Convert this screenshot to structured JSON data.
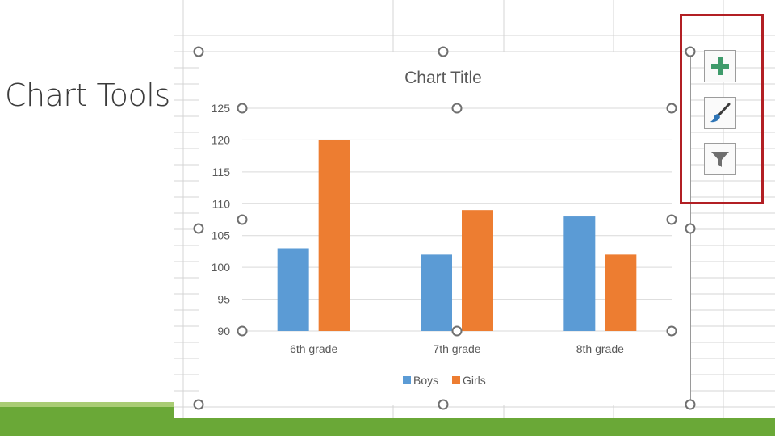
{
  "slide": {
    "title": "Chart Tools"
  },
  "chart_tools": {
    "elements_icon": "plus-icon",
    "styles_icon": "paintbrush-icon",
    "filters_icon": "funnel-icon"
  },
  "colors": {
    "boys": "#5b9bd5",
    "girls": "#ed7d31",
    "highlight": "#b21f24",
    "bottom_bar": "#6aa837",
    "plus": "#3f9b6b"
  },
  "chart_data": {
    "type": "bar",
    "title": "Chart Title",
    "categories": [
      "6th grade",
      "7th grade",
      "8th grade"
    ],
    "series": [
      {
        "name": "Boys",
        "values": [
          103,
          102,
          108
        ]
      },
      {
        "name": "Girls",
        "values": [
          120,
          109,
          102
        ]
      }
    ],
    "ylim": [
      90,
      125
    ],
    "yticks": [
      "90",
      "95",
      "100",
      "105",
      "110",
      "115",
      "120",
      "125"
    ],
    "grid": true,
    "legend": "bottom"
  }
}
